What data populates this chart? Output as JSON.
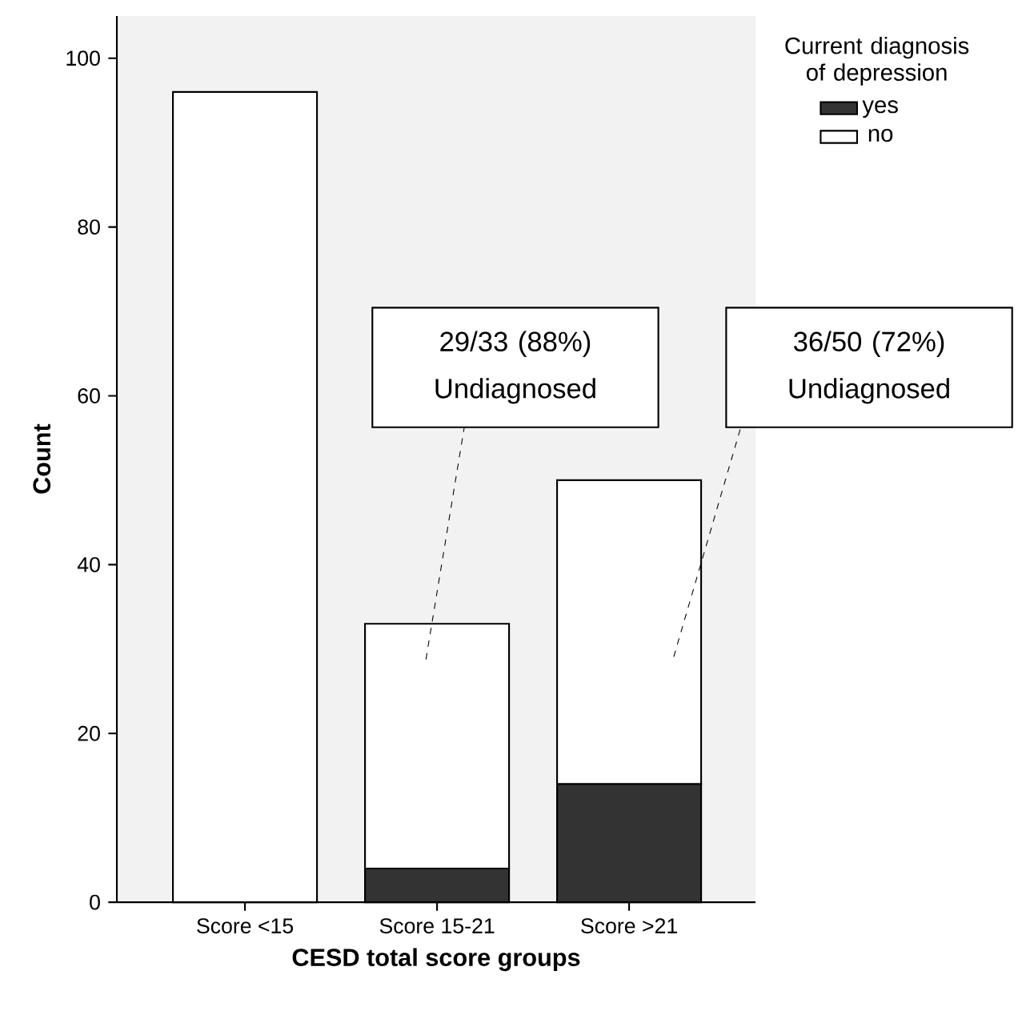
{
  "chart_data": {
    "type": "bar",
    "stacked": true,
    "categories": [
      "Score <15",
      "Score 15-21",
      "Score >21"
    ],
    "series": [
      {
        "name": "yes",
        "color": "#333333",
        "values": [
          0,
          4,
          14
        ]
      },
      {
        "name": "no",
        "color": "#ffffff",
        "values": [
          96,
          29,
          36
        ]
      }
    ],
    "xlabel": "CESD total score groups",
    "ylabel": "Count",
    "legend_title": "Current diagnosis of depression",
    "legend": "top right",
    "ylim": [
      0,
      105
    ],
    "yticks": [
      0,
      20,
      40,
      60,
      80,
      100
    ],
    "annotations": [
      "29/33 (88%) Undiagnosed",
      "36/50 (72%) Undiagnosed"
    ]
  }
}
